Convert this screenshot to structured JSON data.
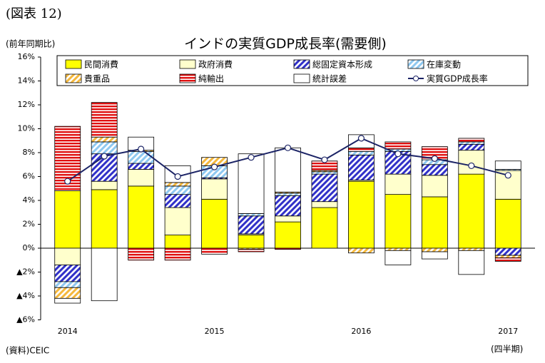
{
  "figure_label": "(図表 12)",
  "chart_data": {
    "type": "bar",
    "title": "インドの実質GDP成長率(需要側)",
    "y_label": "(前年同期比)",
    "x_label": "(四半期)",
    "source": "(資料)CEIC",
    "stacked": true,
    "categories": [
      "2014",
      null,
      null,
      null,
      "2015",
      null,
      null,
      null,
      "2016",
      null,
      null,
      null,
      "2017"
    ],
    "ylim": [
      -6,
      16
    ],
    "yticks": [
      {
        "value": 16,
        "label": "16%"
      },
      {
        "value": 14,
        "label": "14%"
      },
      {
        "value": 12,
        "label": "12%"
      },
      {
        "value": 10,
        "label": "10%"
      },
      {
        "value": 8,
        "label": "8%"
      },
      {
        "value": 6,
        "label": "6%"
      },
      {
        "value": 4,
        "label": "4%"
      },
      {
        "value": 2,
        "label": "2%"
      },
      {
        "value": 0,
        "label": "0%"
      },
      {
        "value": -2,
        "label": "▲2%"
      },
      {
        "value": -4,
        "label": "▲4%"
      },
      {
        "value": -6,
        "label": "▲6%"
      }
    ],
    "series": [
      {
        "name": "民間消費",
        "color": "#ffff00",
        "pattern": "solid",
        "values": [
          4.8,
          4.9,
          5.2,
          1.1,
          4.1,
          1.1,
          2.2,
          3.4,
          5.6,
          4.5,
          4.3,
          6.2,
          4.1
        ]
      },
      {
        "name": "政府消費",
        "color": "#ffffcc",
        "pattern": "solid",
        "values": [
          -1.4,
          0.7,
          1.4,
          2.3,
          1.7,
          0.1,
          0.5,
          0.5,
          0.1,
          1.7,
          1.8,
          2.0,
          2.4
        ]
      },
      {
        "name": "総固定資本形成",
        "color": "#3030c8",
        "pattern": "diagonal",
        "values": [
          -1.4,
          2.3,
          0.5,
          1.1,
          0.1,
          1.5,
          1.7,
          2.3,
          2.1,
          1.9,
          0.9,
          0.5,
          -0.6
        ]
      },
      {
        "name": "在庫変動",
        "color": "#8ec8f0",
        "pattern": "diagonal",
        "values": [
          -0.5,
          1.0,
          1.0,
          0.7,
          1.0,
          0.2,
          0.2,
          0.2,
          0.3,
          0.2,
          0.4,
          0.2,
          0.1
        ]
      },
      {
        "name": "貴重品",
        "color": "#f5b83c",
        "pattern": "diagonal",
        "values": [
          -0.9,
          0.4,
          0.1,
          0.3,
          0.7,
          -0.1,
          0.1,
          0.1,
          -0.4,
          -0.2,
          -0.3,
          -0.2,
          -0.2
        ]
      },
      {
        "name": "純輸出",
        "color": "#e01010",
        "pattern": "horizontal",
        "values": [
          5.4,
          2.9,
          -1.0,
          -1.0,
          -0.5,
          -0.2,
          -0.1,
          0.8,
          0.3,
          0.6,
          1.1,
          0.3,
          -0.3
        ]
      },
      {
        "name": "統計誤差",
        "color": "#ffffff",
        "pattern": "solid",
        "values": [
          -0.4,
          -4.4,
          1.1,
          1.4,
          0.0,
          5.0,
          3.7,
          0.0,
          1.1,
          -1.2,
          -0.6,
          -2.0,
          0.7
        ]
      },
      {
        "name": "実質GDP成長率",
        "type": "line",
        "color": "#1c2466",
        "values": [
          5.6,
          7.7,
          8.3,
          6.0,
          6.8,
          7.6,
          8.4,
          7.4,
          9.2,
          7.9,
          7.5,
          6.9,
          6.1
        ]
      }
    ]
  }
}
